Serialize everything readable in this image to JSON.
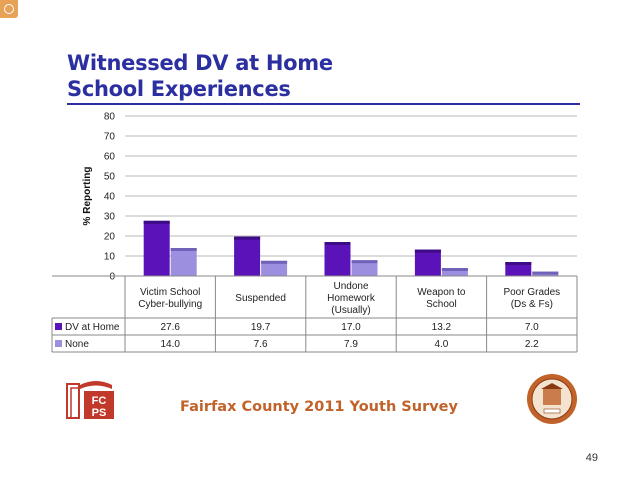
{
  "title_line1": "Witnessed DV at Home",
  "title_line2": "School Experiences",
  "footer_text": "Fairfax County 2011 Youth Survey",
  "page_number": "49",
  "logo_text": "FCPS",
  "colors": {
    "title": "#2b2fa0",
    "series1": "#5a13b8",
    "series2": "#9c8fe0",
    "footer": "#c0622a",
    "logo": "#c0392b"
  },
  "chart_data": {
    "type": "bar",
    "ylabel": "% Reporting",
    "ylim": [
      0,
      80
    ],
    "yticks": [
      "0",
      "10",
      "20",
      "30",
      "40",
      "50",
      "60",
      "70",
      "80"
    ],
    "grid": true,
    "legend_placement": "data-table-left",
    "categories": [
      [
        "Victim School",
        "Cyber-bullying"
      ],
      [
        "Suspended"
      ],
      [
        "Undone",
        "Homework",
        "(Usually)"
      ],
      [
        "Weapon to",
        "School"
      ],
      [
        "Poor Grades",
        "(Ds & Fs)"
      ]
    ],
    "series": [
      {
        "name": "DV at Home",
        "values": [
          27.6,
          19.7,
          17.0,
          13.2,
          7.0
        ],
        "labels": [
          "27.6",
          "19.7",
          "17.0",
          "13.2",
          "7.0"
        ]
      },
      {
        "name": "None",
        "values": [
          14.0,
          7.6,
          7.9,
          4.0,
          2.2
        ],
        "labels": [
          "14.0",
          "7.6",
          "7.9",
          "4.0",
          "2.2"
        ]
      }
    ]
  }
}
